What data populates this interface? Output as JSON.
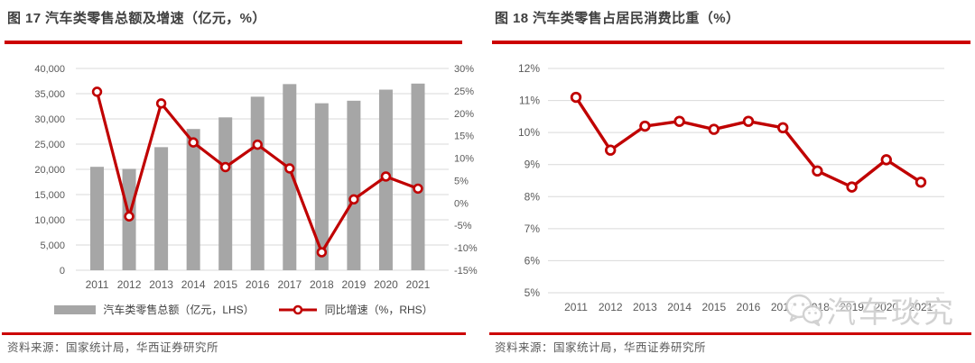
{
  "colors": {
    "accent_red": "#c00000",
    "rule_red": "#cc0000",
    "bar_gray": "#a6a6a6",
    "grid_gray": "#d9d9d9",
    "tick_gray": "#595959",
    "title_gray": "#3f3f3f",
    "watermark_gray": "#cfcfcf"
  },
  "figure17": {
    "title": "图 17 汽车类零售总额及增速（亿元，%）",
    "legend": {
      "bar_label": "汽车类零售总额（亿元，LHS）",
      "line_label": "同比增速（%，RHS）"
    },
    "source": "资料来源：国家统计局，华西证券研究所"
  },
  "figure18": {
    "title": "图 18 汽车类零售占居民消费比重（%）",
    "watermark": "汽车琰究",
    "source": "资料来源：国家统计局，华西证券研究所"
  },
  "chart_data": [
    {
      "type": "bar",
      "title": "图 17 汽车类零售总额及增速（亿元，%）",
      "categories": [
        "2011",
        "2012",
        "2013",
        "2014",
        "2015",
        "2016",
        "2017",
        "2018",
        "2019",
        "2020",
        "2021"
      ],
      "series": [
        {
          "name": "汽车类零售总额（亿元，LHS）",
          "type": "bar",
          "axis": "left",
          "color": "#a6a6a6",
          "values": [
            20500,
            20100,
            24400,
            28000,
            30300,
            34400,
            36900,
            33100,
            33600,
            35800,
            37000
          ]
        },
        {
          "name": "同比增速（%，RHS）",
          "type": "line",
          "axis": "right",
          "color": "#c00000",
          "values": [
            24.8,
            -3.0,
            22.2,
            13.5,
            8.0,
            13.0,
            7.7,
            -11.0,
            0.8,
            5.9,
            3.2
          ]
        }
      ],
      "left_axis": {
        "min": 0,
        "max": 40000,
        "step": 5000,
        "label": "亿元"
      },
      "right_axis": {
        "min": -15,
        "max": 30,
        "step": 5,
        "unit": "%"
      },
      "grid": true,
      "legend_position": "bottom"
    },
    {
      "type": "line",
      "title": "图 18 汽车类零售占居民消费比重（%）",
      "categories": [
        "2011",
        "2012",
        "2013",
        "2014",
        "2015",
        "2016",
        "2017",
        "2018",
        "2019",
        "2020",
        "2021"
      ],
      "series": [
        {
          "name": "汽车类零售占居民消费比重（%）",
          "type": "line",
          "axis": "left",
          "color": "#c00000",
          "values": [
            11.1,
            9.45,
            10.2,
            10.35,
            10.1,
            10.35,
            10.15,
            8.8,
            8.3,
            9.15,
            8.45
          ]
        }
      ],
      "left_axis": {
        "min": 5,
        "max": 12,
        "step": 1,
        "unit": "%"
      },
      "grid": true,
      "legend_position": "none"
    }
  ]
}
